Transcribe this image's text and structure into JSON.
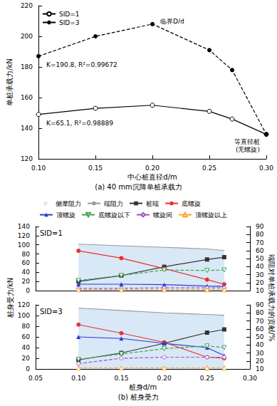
{
  "chart_data": [
    {
      "type": "line",
      "caption": "(a) 40 mm沉降单桩承载力",
      "x_label": "中心桩直径d/m",
      "y_label": "单桩承载力/kN",
      "legend": "upper left",
      "grid": false,
      "x": [
        0.1,
        0.15,
        0.2,
        0.25,
        0.27,
        0.3
      ],
      "xlim": [
        0.1,
        0.3
      ],
      "xticks": [
        {
          "value": 0.1,
          "label": "0.10"
        },
        {
          "value": 0.15,
          "label": "0.15"
        },
        {
          "value": 0.2,
          "label": "0.20"
        },
        {
          "value": 0.25,
          "label": "0.25"
        },
        {
          "value": 0.3,
          "label": "0.30"
        }
      ],
      "ylim": [
        120,
        220
      ],
      "yticks": [
        120,
        140,
        160,
        180,
        200,
        220
      ],
      "series": [
        {
          "name": "SID=1",
          "color": "#000000",
          "marker": "circle-open",
          "line_style": "solid",
          "values": [
            149,
            153,
            155,
            151,
            146,
            136
          ],
          "annotations": [
            {
              "point": 0,
              "text": "K=65.1, R²=0.98889"
            },
            {
              "point": 5,
              "text": "等直径桩\n(无螺旋)"
            }
          ]
        },
        {
          "name": "SID=3",
          "color": "#000000",
          "marker": "circle",
          "line_style": "dashed",
          "values": [
            187,
            200,
            208,
            191,
            178,
            136
          ],
          "annotations": [
            {
              "point": 0,
              "text": "K=190.8, R²=0.99672"
            },
            {
              "point": 2,
              "text": "临界D/d"
            }
          ]
        }
      ]
    },
    {
      "type": "line",
      "title": "SID=1",
      "y_label": "桩身受力/kN",
      "y2_label": "端阻对单桩承载力的贡献/%",
      "legend": "top",
      "grid": false,
      "tick_labels": "y",
      "x": [
        0.1,
        0.15,
        0.2,
        0.25,
        0.27
      ],
      "xlim": [
        0.05,
        0.3
      ],
      "xticks": [
        0.05,
        {
          "value": 0.1,
          "label": "0.10"
        },
        0.15,
        {
          "value": 0.2,
          "label": "0.20"
        },
        0.25,
        {
          "value": 0.3,
          "label": "0.30"
        }
      ],
      "ylim": [
        0,
        140
      ],
      "yticks": [
        0,
        20,
        40,
        60,
        80,
        100,
        120,
        140
      ],
      "y2lim": [
        10,
        90
      ],
      "y2ticks": [
        10,
        20,
        30,
        40,
        50,
        60,
        70,
        80,
        90
      ],
      "series": [
        {
          "name": "侧摩阻力",
          "type": "area",
          "axis": "y2",
          "color": "#d9e8f7",
          "values": [
            68,
            66,
            64,
            62,
            60
          ]
        },
        {
          "name": "端阻力",
          "axis": "y2",
          "color": "#999999",
          "marker": "none",
          "line_style": "solid",
          "values": [
            68,
            66,
            64,
            62,
            60
          ]
        },
        {
          "name": "桩端",
          "color": "#333333",
          "marker": "square",
          "line_style": "solid",
          "values": [
            20,
            33,
            52,
            68,
            73
          ]
        },
        {
          "name": "底螺旋",
          "color": "#e8322b",
          "marker": "circle",
          "line_style": "solid",
          "values": [
            87,
            71,
            48,
            24,
            14
          ]
        },
        {
          "name": "顶螺旋",
          "color": "#2b3bd6",
          "marker": "triangle",
          "line_style": "solid",
          "values": [
            14,
            14,
            13,
            10,
            9
          ]
        },
        {
          "name": "底螺旋以下",
          "color": "#3aa34a",
          "marker": "triangle-down-open",
          "line_style": "dashed",
          "values": [
            22,
            33,
            45,
            44,
            45
          ]
        },
        {
          "name": "螺旋间",
          "color": "#a050c8",
          "marker": "diamond-open",
          "line_style": "dashed",
          "values": [
            5,
            5,
            6,
            6,
            6
          ]
        },
        {
          "name": "顶螺旋以上",
          "color": "#f5a623",
          "marker": "triangle-open",
          "line_style": "dashed",
          "values": [
            2,
            2,
            2,
            2,
            2
          ]
        }
      ]
    },
    {
      "type": "line",
      "title": "SID=3",
      "caption": "(b) 桩身受力",
      "x_label": "桩身d/m",
      "grid": false,
      "x": [
        0.1,
        0.15,
        0.2,
        0.25,
        0.27
      ],
      "xlim": [
        0.05,
        0.3
      ],
      "xticks": [
        0.05,
        {
          "value": 0.1,
          "label": "0.10"
        },
        0.15,
        {
          "value": 0.2,
          "label": "0.20"
        },
        0.25,
        {
          "value": 0.3,
          "label": "0.30"
        }
      ],
      "ylim": [
        0,
        120
      ],
      "yticks": [
        0,
        20,
        40,
        60,
        80,
        100,
        120
      ],
      "y2lim": [
        10,
        90
      ],
      "y2ticks": [
        10,
        20,
        30,
        40,
        50,
        60,
        70,
        80,
        90
      ],
      "series": [
        {
          "name": "侧摩阻力",
          "type": "area",
          "axis": "y2",
          "color": "#d9e8f7",
          "values": [
            86,
            83,
            80,
            78,
            77
          ]
        },
        {
          "name": "端阻力",
          "axis": "y2",
          "color": "#999999",
          "marker": "none",
          "line_style": "solid",
          "values": [
            86,
            83,
            80,
            78,
            77
          ]
        },
        {
          "name": "桩端",
          "color": "#333333",
          "marker": "square",
          "line_style": "solid",
          "values": [
            17,
            30,
            48,
            68,
            74
          ]
        },
        {
          "name": "底螺旋",
          "color": "#e8322b",
          "marker": "circle",
          "line_style": "solid",
          "values": [
            83,
            67,
            50,
            22,
            20
          ]
        },
        {
          "name": "顶螺旋",
          "color": "#2b3bd6",
          "marker": "triangle",
          "line_style": "solid",
          "values": [
            60,
            57,
            48,
            40,
            25
          ]
        },
        {
          "name": "底螺旋以下",
          "color": "#3aa34a",
          "marker": "triangle-down-open",
          "line_style": "dashed",
          "values": [
            18,
            28,
            38,
            43,
            40
          ]
        },
        {
          "name": "螺旋间",
          "color": "#a050c8",
          "marker": "diamond-open",
          "line_style": "dashed",
          "values": [
            10,
            20,
            22,
            22,
            22
          ]
        },
        {
          "name": "顶螺旋以上",
          "color": "#f5a623",
          "marker": "triangle-open",
          "line_style": "dashed",
          "values": [
            2,
            2,
            2,
            2,
            2
          ]
        }
      ]
    }
  ]
}
